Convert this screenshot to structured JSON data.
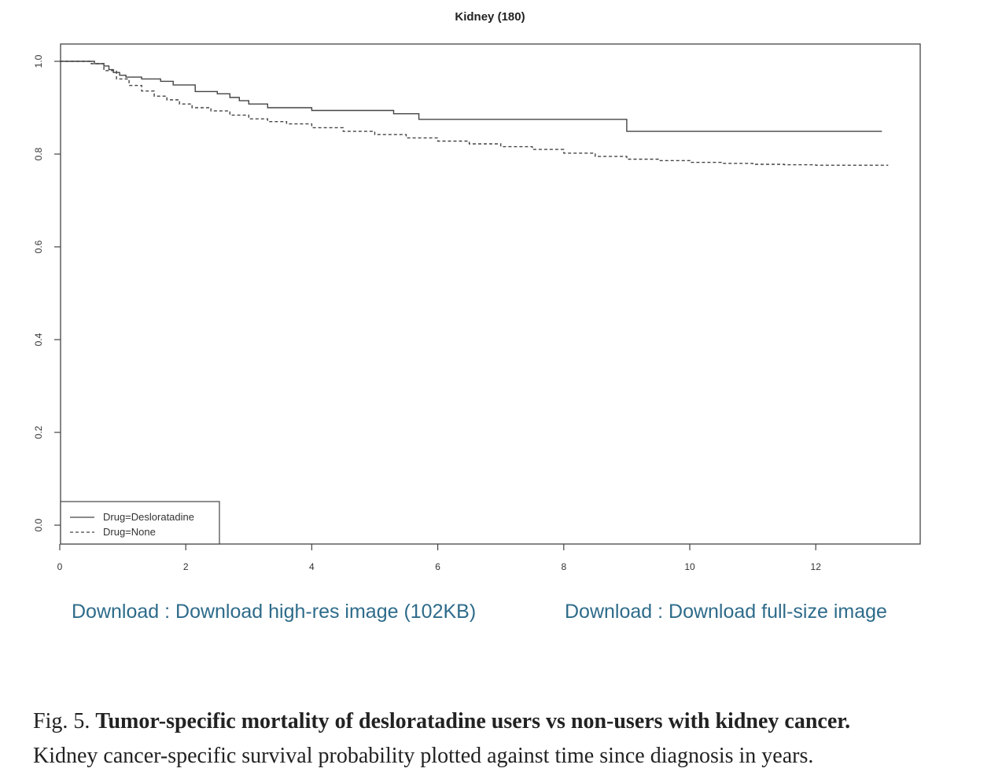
{
  "chart_data": {
    "type": "line",
    "title": "Kidney (180)",
    "xlabel": "",
    "ylabel": "",
    "xlim": [
      0,
      13.6
    ],
    "ylim": [
      0,
      1.0
    ],
    "x_ticks": [
      0,
      2,
      4,
      6,
      8,
      10,
      12
    ],
    "y_ticks": [
      0.0,
      0.2,
      0.4,
      0.6,
      0.8,
      1.0
    ],
    "y_tick_labels": [
      "0.0",
      "0.2",
      "0.4",
      "0.6",
      "0.8",
      "1.0"
    ],
    "x_tick_labels": [
      "0",
      "2",
      "4",
      "6",
      "8",
      "10",
      "12"
    ],
    "grid": false,
    "legend_position": "bottom-left",
    "step": true,
    "series": [
      {
        "name": "Drug=Desloratadine",
        "line_style": "solid",
        "x": [
          0,
          0.55,
          0.7,
          0.78,
          0.85,
          0.95,
          1.05,
          1.3,
          1.6,
          1.8,
          2.15,
          2.5,
          2.7,
          2.85,
          3.0,
          3.3,
          3.6,
          4.0,
          5.3,
          5.7,
          9.0,
          13.05
        ],
        "y": [
          1.0,
          0.995,
          0.99,
          0.982,
          0.976,
          0.97,
          0.966,
          0.962,
          0.957,
          0.949,
          0.935,
          0.93,
          0.922,
          0.915,
          0.908,
          0.9,
          0.9,
          0.894,
          0.887,
          0.875,
          0.849,
          0.849
        ]
      },
      {
        "name": "Drug=None",
        "line_style": "dashed",
        "x": [
          0,
          0.5,
          0.7,
          0.9,
          1.1,
          1.3,
          1.5,
          1.7,
          1.9,
          2.1,
          2.4,
          2.7,
          3.0,
          3.3,
          3.6,
          4.0,
          4.5,
          5.0,
          5.5,
          6.0,
          6.5,
          7.0,
          7.5,
          8.0,
          8.5,
          9.0,
          9.5,
          10.0,
          10.5,
          11.0,
          11.5,
          12.0,
          12.5,
          13.15
        ],
        "y": [
          1.0,
          0.995,
          0.98,
          0.962,
          0.948,
          0.936,
          0.925,
          0.917,
          0.908,
          0.9,
          0.893,
          0.884,
          0.876,
          0.87,
          0.865,
          0.857,
          0.849,
          0.842,
          0.835,
          0.828,
          0.822,
          0.816,
          0.81,
          0.802,
          0.795,
          0.789,
          0.786,
          0.782,
          0.78,
          0.778,
          0.777,
          0.776,
          0.776,
          0.776
        ]
      }
    ]
  },
  "links": {
    "hires": "Download : Download high-res image (102KB)",
    "full": "Download : Download full-size image"
  },
  "caption": {
    "label": "Fig. 5.",
    "title": "Tumor-specific mortality of desloratadine users vs non-users with kidney cancer.",
    "body": "Kidney cancer-specific survival probability plotted against time since diagnosis in years."
  }
}
